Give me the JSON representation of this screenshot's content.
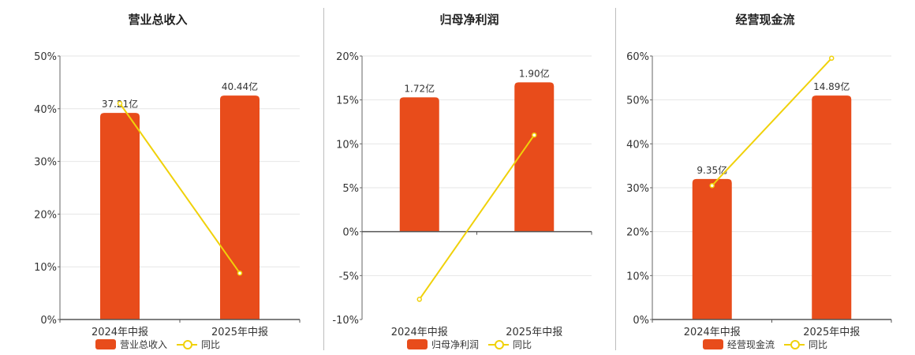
{
  "chart_data": [
    {
      "type": "bar",
      "title": "营业总收入",
      "categories": [
        "2024年中报",
        "2025年中报"
      ],
      "bar_series_name": "营业总收入",
      "bar_labels": [
        "37.21亿",
        "40.44亿"
      ],
      "bar_values_pct": [
        39.2,
        42.5
      ],
      "line_series_name": "同比",
      "line_values_pct": [
        41.0,
        8.8
      ],
      "ylim": [
        0,
        50
      ],
      "yticks": [
        "0%",
        "10%",
        "20%",
        "30%",
        "40%",
        "50%"
      ],
      "ytick_values": [
        0,
        10,
        20,
        30,
        40,
        50
      ],
      "grid": true,
      "legend_position": "bottom"
    },
    {
      "type": "bar",
      "title": "归母净利润",
      "categories": [
        "2024年中报",
        "2025年中报"
      ],
      "bar_series_name": "归母净利润",
      "bar_labels": [
        "1.72亿",
        "1.90亿"
      ],
      "bar_values_pct": [
        15.3,
        17.0
      ],
      "line_series_name": "同比",
      "line_values_pct": [
        -7.7,
        11.0
      ],
      "ylim": [
        -10,
        20
      ],
      "yticks": [
        "-10%",
        "-5%",
        "0%",
        "5%",
        "10%",
        "15%",
        "20%"
      ],
      "ytick_values": [
        -10,
        -5,
        0,
        5,
        10,
        15,
        20
      ],
      "grid": true,
      "legend_position": "bottom"
    },
    {
      "type": "bar",
      "title": "经营现金流",
      "categories": [
        "2024年中报",
        "2025年中报"
      ],
      "bar_series_name": "经营现金流",
      "bar_labels": [
        "9.35亿",
        "14.89亿"
      ],
      "bar_values_pct": [
        32.0,
        51.0
      ],
      "line_series_name": "同比",
      "line_values_pct": [
        30.5,
        59.5
      ],
      "ylim": [
        0,
        60
      ],
      "yticks": [
        "0%",
        "10%",
        "20%",
        "30%",
        "40%",
        "50%",
        "60%"
      ],
      "ytick_values": [
        0,
        10,
        20,
        30,
        40,
        50,
        60
      ],
      "grid": true,
      "legend_position": "bottom"
    }
  ],
  "colors": {
    "bar": "#e84c1b",
    "line": "#f0d10a",
    "grid": "#e6e6e6",
    "axis": "#333333"
  }
}
